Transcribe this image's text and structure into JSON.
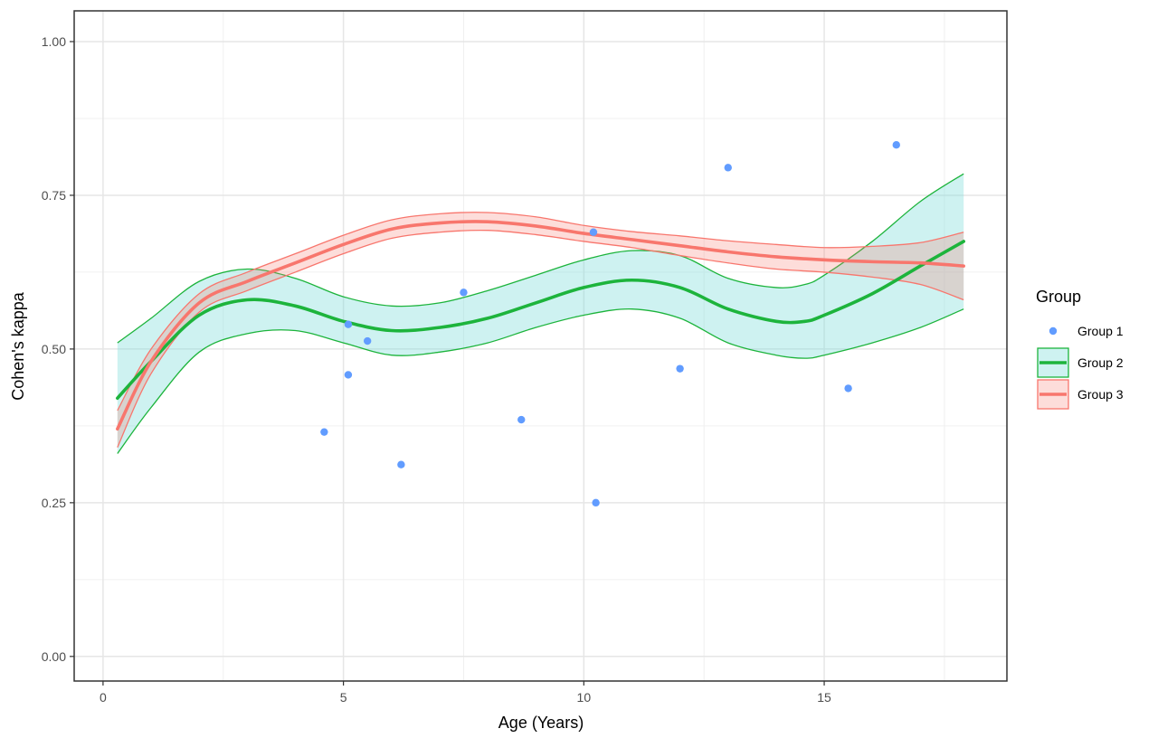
{
  "chart_data": {
    "type": "scatter",
    "title": "",
    "xlabel": "Age (Years)",
    "ylabel": "Cohen's kappa",
    "xlim": [
      -0.6,
      18.8
    ],
    "ylim": [
      -0.04,
      1.05
    ],
    "xticks": [
      0,
      5,
      10,
      15
    ],
    "xtick_labels": [
      "0",
      "5",
      "10",
      "15"
    ],
    "yticks": [
      0,
      0.25,
      0.5,
      0.75,
      1.0
    ],
    "ytick_labels": [
      "0.00",
      "0.25",
      "0.50",
      "0.75",
      "1.00"
    ],
    "grid": true,
    "legend": {
      "title": "Group",
      "position": "right",
      "entries": [
        "Group 1",
        "Group 2",
        "Group 3"
      ]
    },
    "series": [
      {
        "name": "Group 1",
        "kind": "points",
        "color": "#619CFF",
        "points": [
          {
            "x": 4.6,
            "y": 0.365
          },
          {
            "x": 5.1,
            "y": 0.458
          },
          {
            "x": 5.1,
            "y": 0.54
          },
          {
            "x": 5.5,
            "y": 0.513
          },
          {
            "x": 6.2,
            "y": 0.312
          },
          {
            "x": 7.5,
            "y": 0.592
          },
          {
            "x": 8.7,
            "y": 0.385
          },
          {
            "x": 10.2,
            "y": 0.69
          },
          {
            "x": 10.25,
            "y": 0.25
          },
          {
            "x": 12.0,
            "y": 0.468
          },
          {
            "x": 13.0,
            "y": 0.795
          },
          {
            "x": 15.5,
            "y": 0.436
          },
          {
            "x": 16.5,
            "y": 0.832
          }
        ]
      },
      {
        "name": "Group 2",
        "kind": "smooth",
        "color": "#1DB43C",
        "fill": "#7FDDDB",
        "x": [
          0.3,
          1,
          2,
          3,
          4,
          5,
          6,
          7,
          8,
          9,
          10,
          11,
          12,
          13,
          14,
          14.6,
          15,
          16,
          17,
          17.9
        ],
        "y": [
          0.42,
          0.48,
          0.555,
          0.58,
          0.57,
          0.545,
          0.53,
          0.535,
          0.55,
          0.575,
          0.6,
          0.612,
          0.6,
          0.565,
          0.545,
          0.545,
          0.555,
          0.59,
          0.635,
          0.675
        ],
        "lower": [
          0.33,
          0.405,
          0.495,
          0.525,
          0.53,
          0.51,
          0.49,
          0.495,
          0.51,
          0.535,
          0.555,
          0.565,
          0.55,
          0.51,
          0.49,
          0.485,
          0.49,
          0.51,
          0.535,
          0.565
        ],
        "upper": [
          0.51,
          0.55,
          0.61,
          0.63,
          0.615,
          0.585,
          0.57,
          0.575,
          0.595,
          0.62,
          0.645,
          0.66,
          0.652,
          0.615,
          0.6,
          0.605,
          0.62,
          0.675,
          0.74,
          0.785
        ]
      },
      {
        "name": "Group 3",
        "kind": "smooth",
        "color": "#F8766D",
        "fill": "#F8766D",
        "x": [
          0.3,
          1,
          2,
          3,
          4,
          5,
          6,
          7,
          8,
          9,
          10,
          11,
          12,
          13,
          14,
          15,
          16,
          17,
          17.9
        ],
        "y": [
          0.37,
          0.48,
          0.575,
          0.61,
          0.64,
          0.67,
          0.695,
          0.705,
          0.707,
          0.7,
          0.688,
          0.678,
          0.668,
          0.658,
          0.65,
          0.645,
          0.642,
          0.64,
          0.635
        ],
        "lower": [
          0.34,
          0.46,
          0.56,
          0.595,
          0.625,
          0.655,
          0.68,
          0.69,
          0.693,
          0.686,
          0.675,
          0.665,
          0.652,
          0.64,
          0.63,
          0.625,
          0.617,
          0.605,
          0.58
        ],
        "upper": [
          0.4,
          0.5,
          0.59,
          0.625,
          0.655,
          0.685,
          0.71,
          0.72,
          0.722,
          0.715,
          0.701,
          0.691,
          0.684,
          0.676,
          0.67,
          0.665,
          0.667,
          0.673,
          0.69
        ]
      }
    ]
  }
}
